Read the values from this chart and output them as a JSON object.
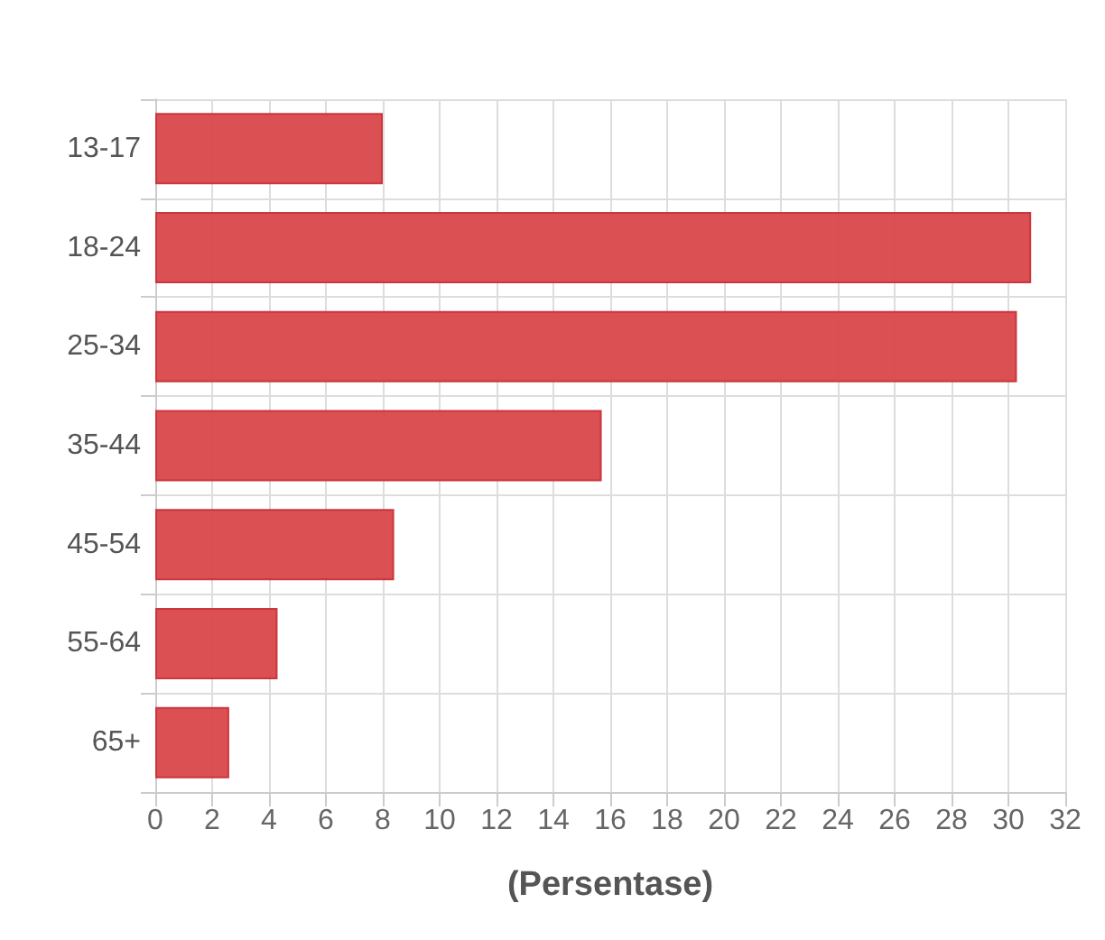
{
  "chart_data": {
    "type": "bar",
    "orientation": "horizontal",
    "xlabel": "(Persentase)",
    "categories": [
      "13-17",
      "18-24",
      "25-34",
      "35-44",
      "45-54",
      "55-64",
      "65+"
    ],
    "values": [
      8.0,
      30.8,
      30.3,
      15.7,
      8.4,
      4.3,
      2.6
    ],
    "color": "#d9474a",
    "xlim": [
      0,
      32
    ],
    "xticks": [
      0,
      2,
      4,
      6,
      8,
      10,
      12,
      14,
      16,
      18,
      20,
      22,
      24,
      26,
      28,
      30,
      32
    ],
    "grid": true
  }
}
